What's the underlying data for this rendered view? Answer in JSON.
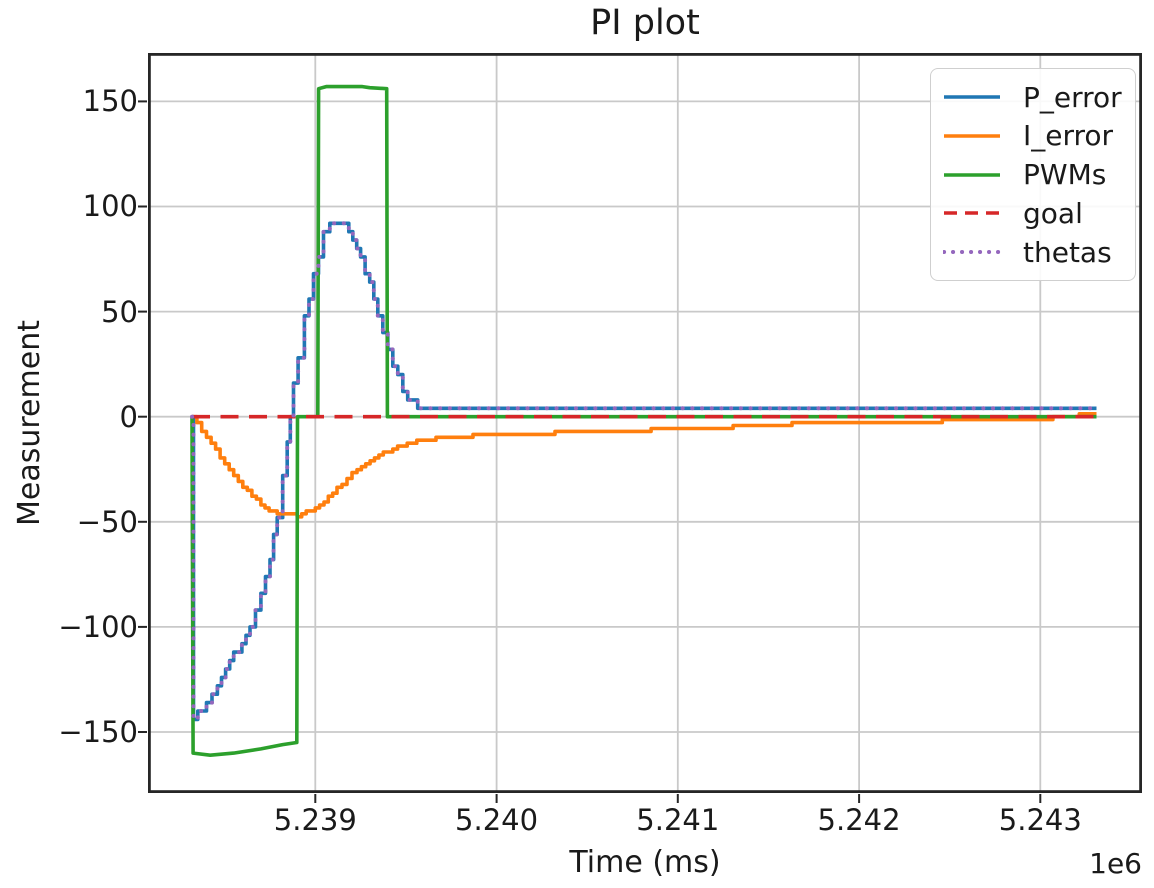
{
  "chart_data": {
    "type": "line",
    "title": "PI plot",
    "xlabel": "Time (ms)",
    "ylabel": "Measurement",
    "x_offset_label": "1e6",
    "grid": true,
    "legend_position": "upper right",
    "xlim": [
      5238077,
      5243561
    ],
    "ylim": [
      -179,
      173
    ],
    "xticks": {
      "values": [
        5239000,
        5240000,
        5241000,
        5242000,
        5243000
      ],
      "labels": [
        "5.239",
        "5.240",
        "5.241",
        "5.242",
        "5.243"
      ]
    },
    "yticks": {
      "values": [
        150,
        100,
        50,
        0,
        -50,
        -100,
        -150
      ],
      "labels": [
        "150",
        "100",
        "50",
        "0",
        "−50",
        "−100",
        "−150"
      ]
    },
    "colors": {
      "P_error": "#1f77b4",
      "I_error": "#ff7f0e",
      "PWMs": "#2ca02c",
      "goal": "#d62728",
      "thetas": "#9467bd",
      "grid": "#c9c9c9",
      "spine": "#262626",
      "text": "#1a1a1a"
    },
    "series": [
      {
        "name": "P_error",
        "color": "#1f77b4",
        "linestyle": "solid",
        "linewidth": 3.6,
        "render": "staircase",
        "step_dv": 4,
        "points": [
          [
            5238320,
            0
          ],
          [
            5238328,
            -145
          ],
          [
            5238400,
            -136
          ],
          [
            5238460,
            -129
          ],
          [
            5238550,
            -114
          ],
          [
            5238640,
            -100
          ],
          [
            5238700,
            -84
          ],
          [
            5238750,
            -68
          ],
          [
            5238790,
            -48
          ],
          [
            5238820,
            -30
          ],
          [
            5238845,
            -12
          ],
          [
            5238862,
            0
          ],
          [
            5238880,
            14
          ],
          [
            5238905,
            28
          ],
          [
            5238940,
            47
          ],
          [
            5238990,
            68
          ],
          [
            5239045,
            86
          ],
          [
            5239080,
            91
          ],
          [
            5239110,
            93
          ],
          [
            5239150,
            90
          ],
          [
            5239185,
            86
          ],
          [
            5239250,
            75
          ],
          [
            5239300,
            62
          ],
          [
            5239345,
            47
          ],
          [
            5239400,
            32
          ],
          [
            5239455,
            18
          ],
          [
            5239510,
            8
          ],
          [
            5239565,
            5
          ],
          [
            5239700,
            3.5
          ],
          [
            5241000,
            3.2
          ],
          [
            5243310,
            3
          ]
        ]
      },
      {
        "name": "I_error",
        "color": "#ff7f0e",
        "linestyle": "solid",
        "linewidth": 3.6,
        "render": "staircase",
        "step_dv": 1.4,
        "points": [
          [
            5238320,
            0
          ],
          [
            5238400,
            -10
          ],
          [
            5238500,
            -22
          ],
          [
            5238600,
            -33
          ],
          [
            5238700,
            -42
          ],
          [
            5238790,
            -46.5
          ],
          [
            5238900,
            -47
          ],
          [
            5239000,
            -44
          ],
          [
            5239120,
            -34
          ],
          [
            5239230,
            -25
          ],
          [
            5239375,
            -17
          ],
          [
            5239560,
            -11.5
          ],
          [
            5239745,
            -9.5
          ],
          [
            5240020,
            -8.5
          ],
          [
            5240575,
            -7
          ],
          [
            5241130,
            -5.5
          ],
          [
            5241630,
            -3.5
          ],
          [
            5242230,
            -2.5
          ],
          [
            5242790,
            -1.5
          ],
          [
            5243120,
            -0.5
          ],
          [
            5243310,
            2
          ]
        ]
      },
      {
        "name": "PWMs",
        "color": "#2ca02c",
        "linestyle": "solid",
        "linewidth": 3.6,
        "render": "line",
        "points": [
          [
            5238320,
            0
          ],
          [
            5238326,
            -160
          ],
          [
            5238420,
            -161
          ],
          [
            5238550,
            -160
          ],
          [
            5238700,
            -158
          ],
          [
            5238820,
            -156
          ],
          [
            5238898,
            -155
          ],
          [
            5238902,
            0
          ],
          [
            5239014,
            0
          ],
          [
            5239018,
            156
          ],
          [
            5239060,
            157
          ],
          [
            5239260,
            157
          ],
          [
            5239300,
            156.5
          ],
          [
            5239394,
            156
          ],
          [
            5239398,
            0
          ],
          [
            5243310,
            0
          ]
        ]
      },
      {
        "name": "goal",
        "color": "#d62728",
        "linestyle": "dashed",
        "linewidth": 3.6,
        "render": "line",
        "points": [
          [
            5238320,
            0
          ],
          [
            5243312,
            0
          ]
        ]
      },
      {
        "name": "thetas",
        "color": "#9467bd",
        "linestyle": "dotted",
        "linewidth": 4,
        "render": "staircase",
        "step_dv": 4,
        "points": [
          [
            5238320,
            0
          ],
          [
            5238328,
            -145
          ],
          [
            5238400,
            -136
          ],
          [
            5238460,
            -129
          ],
          [
            5238550,
            -114
          ],
          [
            5238640,
            -100
          ],
          [
            5238700,
            -84
          ],
          [
            5238750,
            -68
          ],
          [
            5238790,
            -48
          ],
          [
            5238820,
            -30
          ],
          [
            5238845,
            -12
          ],
          [
            5238862,
            0
          ],
          [
            5238880,
            14
          ],
          [
            5238905,
            28
          ],
          [
            5238940,
            47
          ],
          [
            5238990,
            68
          ],
          [
            5239045,
            86
          ],
          [
            5239080,
            91
          ],
          [
            5239110,
            93
          ],
          [
            5239150,
            90
          ],
          [
            5239185,
            86
          ],
          [
            5239250,
            75
          ],
          [
            5239300,
            62
          ],
          [
            5239345,
            47
          ],
          [
            5239400,
            32
          ],
          [
            5239455,
            18
          ],
          [
            5239510,
            8
          ],
          [
            5239565,
            5
          ],
          [
            5239700,
            3.5
          ],
          [
            5241000,
            3.2
          ],
          [
            5243310,
            3
          ]
        ]
      }
    ]
  }
}
